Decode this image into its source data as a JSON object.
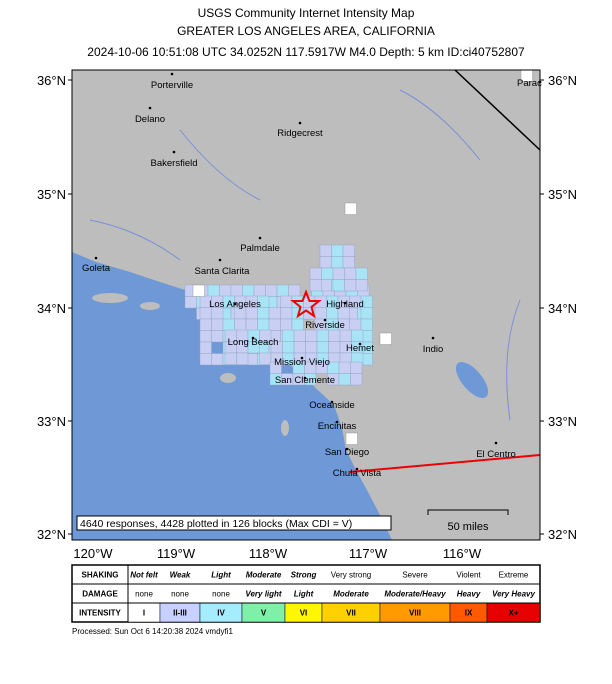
{
  "header": {
    "title": "USGS Community Internet Intensity Map",
    "subtitle": "GREATER LOS ANGELES AREA, CALIFORNIA",
    "info": "2024-10-06 10:51:08 UTC 34.0252N 117.5917W M4.0 Depth: 5 km ID:ci40752807"
  },
  "axes": {
    "lat_labels": [
      "36°N",
      "35°N",
      "34°N",
      "33°N",
      "32°N"
    ],
    "lon_labels": [
      "120°W",
      "119°W",
      "118°W",
      "117°W",
      "116°W"
    ]
  },
  "cities": [
    "Porterville",
    "Delano",
    "Ridgecrest",
    "Bakersfield",
    "Palmdale",
    "Goleta",
    "Santa Clarita",
    "Los Angeles",
    "Highland",
    "Riverside",
    "Long Beach",
    "Hemet",
    "Indio",
    "Mission Viejo",
    "San Clemente",
    "Oceanside",
    "Encinitas",
    "San Diego",
    "Chula Vista",
    "El Centro",
    "Parac"
  ],
  "responses_note": "4640 responses, 4428 plotted in 126 blocks (Max CDI = V)",
  "scale_label": "50 miles",
  "legend": {
    "row_headers": [
      "SHAKING",
      "DAMAGE",
      "INTENSITY"
    ],
    "shaking": [
      "Not felt",
      "Weak",
      "Light",
      "Moderate",
      "Strong",
      "Very strong",
      "Severe",
      "Violent",
      "Extreme"
    ],
    "damage": [
      "none",
      "none",
      "none",
      "Very light",
      "Light",
      "Moderate",
      "Moderate/Heavy",
      "Heavy",
      "Very Heavy"
    ],
    "intensity": [
      "I",
      "II-III",
      "IV",
      "V",
      "VI",
      "VII",
      "VIII",
      "IX",
      "X+"
    ]
  },
  "footer": "Processed: Sun Oct  6 14:20:38 2024 vmdyfi1"
}
